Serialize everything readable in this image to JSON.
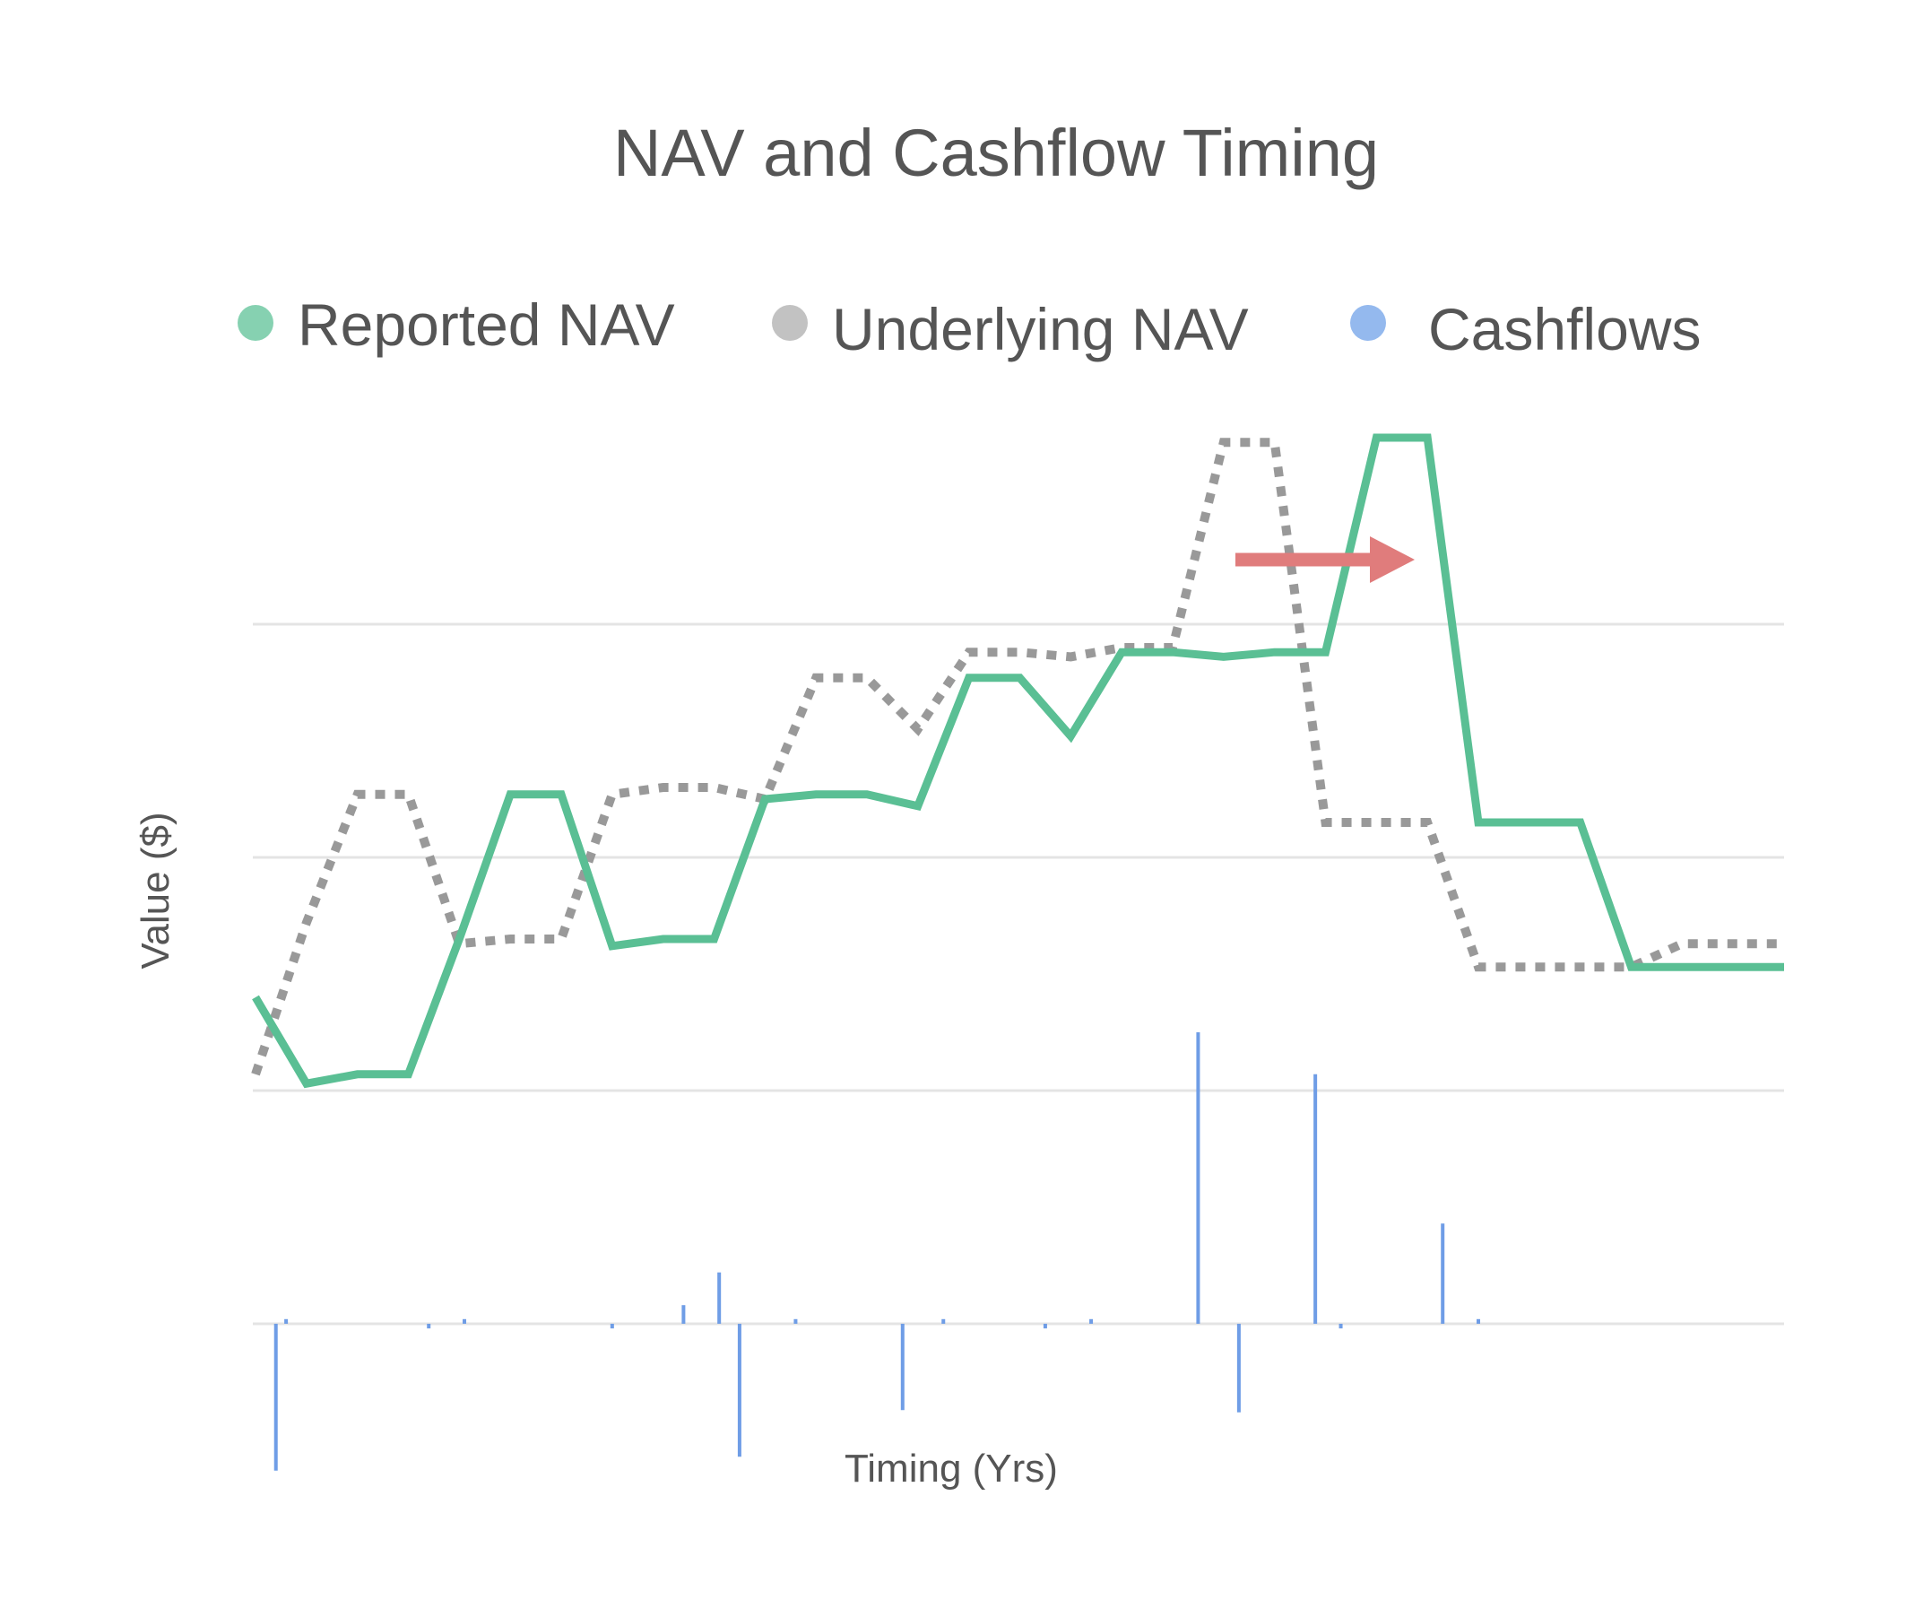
{
  "chart_data": {
    "type": "line",
    "title": "NAV and Cashflow Timing",
    "xlabel": "Timing (Yrs)",
    "ylabel": "Value ($)",
    "legend_position": "top",
    "grid": true,
    "ylim": [
      -0.63,
      3.7
    ],
    "xlim": [
      0,
      30
    ],
    "x": [
      0,
      1,
      2,
      3,
      4,
      5,
      6,
      7,
      8,
      9,
      10,
      11,
      12,
      13,
      14,
      15,
      16,
      17,
      18,
      19,
      20,
      21,
      22,
      23,
      24,
      25,
      26,
      27,
      28,
      29,
      30
    ],
    "series": [
      {
        "name": "Reported NAV",
        "style": "solid",
        "color": "#5abf94",
        "values": [
          1.4,
          1.03,
          1.07,
          1.07,
          1.65,
          2.27,
          2.27,
          1.62,
          1.65,
          1.65,
          2.25,
          2.27,
          2.27,
          2.22,
          2.77,
          2.77,
          2.52,
          2.88,
          2.88,
          2.86,
          2.88,
          2.88,
          3.8,
          3.8,
          2.15,
          2.15,
          2.15,
          1.53,
          1.53,
          1.53,
          1.53
        ]
      },
      {
        "name": "Underlying NAV",
        "style": "dotted",
        "color": "#999999",
        "values": [
          1.07,
          1.72,
          2.27,
          2.27,
          1.63,
          1.65,
          1.65,
          2.27,
          2.3,
          2.3,
          2.25,
          2.77,
          2.77,
          2.55,
          2.88,
          2.88,
          2.86,
          2.9,
          2.9,
          3.78,
          3.78,
          2.15,
          2.15,
          2.15,
          1.53,
          1.53,
          1.53,
          1.53,
          1.63,
          1.63,
          1.63
        ]
      },
      {
        "name": "Cashflows",
        "style": "bar",
        "color": "#6f9de6",
        "x": [
          0.4,
          0.6,
          3.4,
          4.1,
          7.0,
          8.4,
          9.1,
          9.5,
          10.6,
          12.7,
          13.5,
          15.5,
          16.4,
          18.5,
          19.3,
          20.8,
          21.3,
          23.3,
          24.0
        ],
        "values": [
          -0.63,
          0.02,
          -0.02,
          0.02,
          -0.02,
          0.08,
          0.22,
          -0.57,
          0.02,
          -0.37,
          0.02,
          -0.02,
          0.02,
          1.25,
          -0.38,
          1.07,
          -0.02,
          0.43,
          0.02
        ]
      }
    ]
  },
  "legend": {
    "items": [
      {
        "label": "Reported NAV",
        "color": "#86d1b1"
      },
      {
        "label": "Underlying NAV",
        "color": "#c2c2c2"
      },
      {
        "label": "Cashflows",
        "color": "#94b9ee"
      }
    ]
  },
  "annotations": {
    "arrow_color": "#e07c7c"
  }
}
